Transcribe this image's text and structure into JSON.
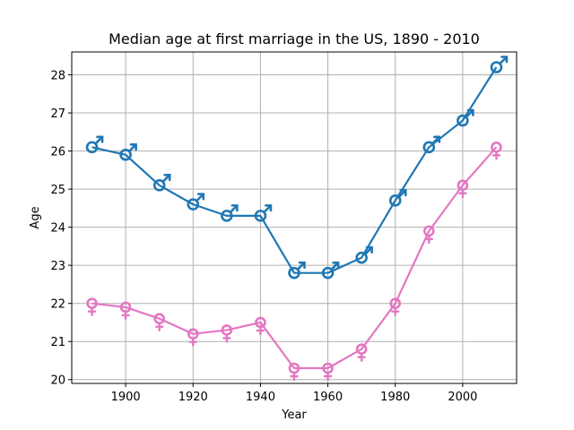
{
  "chart_data": {
    "type": "line",
    "title": "Median age at first marriage in the US, 1890 - 2010",
    "xlabel": "Year",
    "ylabel": "Age",
    "xlim": [
      1884,
      2016
    ],
    "ylim": [
      19.9,
      28.6
    ],
    "x_ticks": [
      1900,
      1920,
      1940,
      1960,
      1980,
      2000
    ],
    "y_ticks": [
      20,
      21,
      22,
      23,
      24,
      25,
      26,
      27,
      28
    ],
    "grid": true,
    "x": [
      1890,
      1900,
      1910,
      1920,
      1930,
      1940,
      1950,
      1960,
      1970,
      1980,
      1990,
      2000,
      2010
    ],
    "series": [
      {
        "name": "Men",
        "marker": "male-symbol",
        "color": "#1f77b4",
        "values": [
          26.1,
          25.9,
          25.1,
          24.6,
          24.3,
          24.3,
          22.8,
          22.8,
          23.2,
          24.7,
          26.1,
          26.8,
          28.2
        ]
      },
      {
        "name": "Women",
        "marker": "female-symbol",
        "color": "#e377c2",
        "values": [
          22.0,
          21.9,
          21.6,
          21.2,
          21.3,
          21.5,
          20.3,
          20.3,
          20.8,
          22.0,
          23.9,
          25.1,
          26.1
        ]
      }
    ]
  }
}
